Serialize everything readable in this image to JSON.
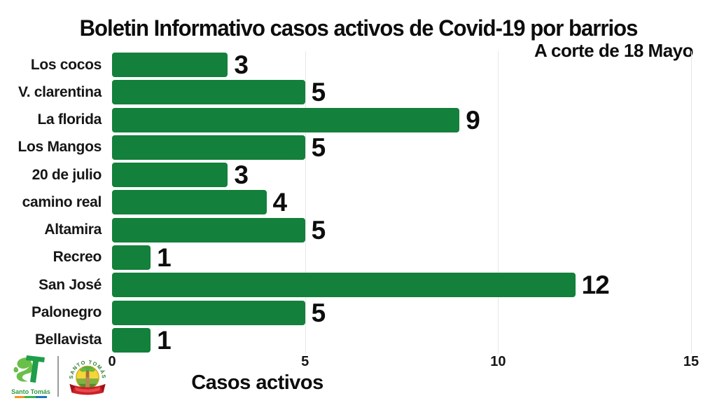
{
  "header": {
    "title": "Boletin Informativo casos activos de Covid-19 por barrios",
    "subtitle": "A corte de 18 Mayo"
  },
  "chart_data": {
    "type": "bar",
    "orientation": "horizontal",
    "title": "Boletin Informativo casos activos de Covid-19 por barrios",
    "subtitle": "A corte de 18 Mayo",
    "categories": [
      "Los cocos",
      "V. clarentina",
      "La florida",
      "Los Mangos",
      "20 de julio",
      "camino real",
      "Altamira",
      "Recreo",
      "San José",
      "Palonegro",
      "Bellavista"
    ],
    "values": [
      3,
      5,
      9,
      5,
      3,
      4,
      5,
      1,
      12,
      5,
      1
    ],
    "value_labels_shown": true,
    "xlabel": "Casos activos",
    "ylabel": "",
    "xlim": [
      0,
      15
    ],
    "xticks": [
      0,
      5,
      10,
      15
    ],
    "grid": "vertical-gridlines-at-5-10-15",
    "legend": "none",
    "bar_color": "#13803b",
    "gridline_color": "#e7e7e7",
    "text_color": "#0d0d0d",
    "background_color": "#ffffff"
  },
  "footer": {
    "logo_left": {
      "name": "santo-tomas-st-logo",
      "text": "Santo Tomás"
    },
    "logo_right": {
      "name": "santo-tomas-municipal-seal",
      "arc_text": "SANTO TOMÁS"
    }
  }
}
